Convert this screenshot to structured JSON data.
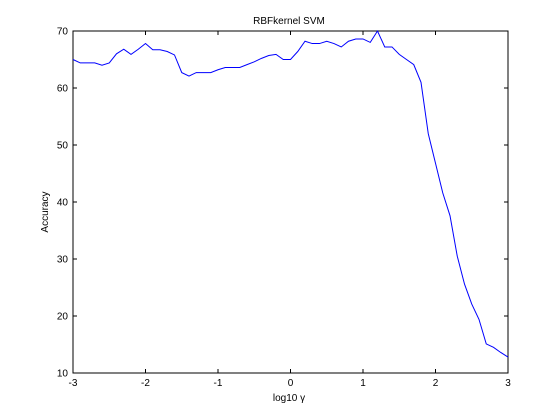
{
  "chart_data": {
    "type": "line",
    "title": "RBFkernel SVM",
    "xlabel": "log10 γ",
    "ylabel": "Accuracy",
    "xlim": [
      -3,
      3
    ],
    "ylim": [
      10,
      70
    ],
    "xticks": [
      -3,
      -2,
      -1,
      0,
      1,
      2,
      3
    ],
    "yticks": [
      10,
      20,
      30,
      40,
      50,
      60,
      70
    ],
    "grid": false,
    "series": [
      {
        "color": "#0000ff",
        "x": [
          -3.0,
          -2.9,
          -2.8,
          -2.7,
          -2.6,
          -2.5,
          -2.4,
          -2.3,
          -2.2,
          -2.1,
          -2.0,
          -1.9,
          -1.8,
          -1.7,
          -1.6,
          -1.5,
          -1.4,
          -1.3,
          -1.2,
          -1.1,
          -1.0,
          -0.9,
          -0.8,
          -0.7,
          -0.6,
          -0.5,
          -0.4,
          -0.3,
          -0.2,
          -0.1,
          0.0,
          0.1,
          0.2,
          0.3,
          0.4,
          0.5,
          0.6,
          0.7,
          0.8,
          0.9,
          1.0,
          1.1,
          1.2,
          1.3,
          1.4,
          1.5,
          1.6,
          1.7,
          1.8,
          1.9,
          2.0,
          2.1,
          2.2,
          2.3,
          2.4,
          2.5,
          2.6,
          2.7,
          2.8,
          2.9,
          3.0
        ],
        "y": [
          65.0,
          64.4,
          64.4,
          64.4,
          64.0,
          64.4,
          66.0,
          66.8,
          65.9,
          66.8,
          67.8,
          66.7,
          66.7,
          66.4,
          65.8,
          62.7,
          62.1,
          62.7,
          62.7,
          62.7,
          63.2,
          63.6,
          63.6,
          63.6,
          64.1,
          64.6,
          65.2,
          65.7,
          65.9,
          65.0,
          65.0,
          66.4,
          68.2,
          67.8,
          67.8,
          68.2,
          67.8,
          67.2,
          68.2,
          68.6,
          68.6,
          68.0,
          70.0,
          67.2,
          67.2,
          65.9,
          65.0,
          64.1,
          61.0,
          52.0,
          46.8,
          41.6,
          37.6,
          30.5,
          25.6,
          22.1,
          19.4,
          15.1,
          14.5,
          13.6,
          12.8
        ]
      }
    ]
  }
}
